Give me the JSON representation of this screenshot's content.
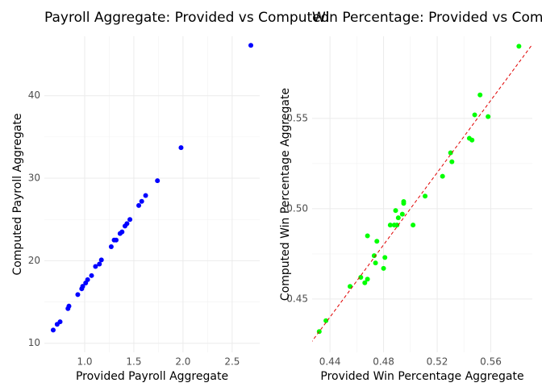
{
  "chart_data": [
    {
      "type": "scatter",
      "title": "Payroll Aggregate: Provided vs Computed",
      "x_label": "Provided Payroll Aggregate",
      "y_label": "Computed Payroll Aggregate",
      "color": "#0000ff",
      "x": [
        0.68,
        0.72,
        0.75,
        0.83,
        0.84,
        0.93,
        0.97,
        0.98,
        1.01,
        1.03,
        1.07,
        1.11,
        1.15,
        1.17,
        1.27,
        1.3,
        1.32,
        1.36,
        1.38,
        1.41,
        1.43,
        1.46,
        1.55,
        1.58,
        1.62,
        1.74,
        1.98,
        2.69
      ],
      "values": [
        11.6,
        12.3,
        12.6,
        14.2,
        14.5,
        15.9,
        16.6,
        16.9,
        17.3,
        17.7,
        18.2,
        19.3,
        19.6,
        20.1,
        21.7,
        22.5,
        22.5,
        23.3,
        23.5,
        24.2,
        24.5,
        25.0,
        26.7,
        27.2,
        27.9,
        29.7,
        33.7,
        46.1
      ],
      "xlim": [
        0.59,
        2.78
      ],
      "ylim": [
        8.9,
        47.2
      ],
      "xticks": [
        {
          "value": 1.0,
          "label": "1.0"
        },
        {
          "value": 1.5,
          "label": "1.5"
        },
        {
          "value": 2.0,
          "label": "2.0"
        },
        2.5
      ],
      "yticks": [
        10,
        20,
        30,
        40
      ],
      "grid": true,
      "reference_line": false
    },
    {
      "type": "scatter",
      "title": "Win Percentage: Provided vs Comp",
      "x_label": "Provided Win Percentage Aggregate",
      "y_label": "Computed Win Percentage Aggregate",
      "color": "#00ff00",
      "x": [
        0.432,
        0.437,
        0.455,
        0.463,
        0.466,
        0.468,
        0.468,
        0.473,
        0.474,
        0.475,
        0.48,
        0.481,
        0.485,
        0.488,
        0.489,
        0.49,
        0.491,
        0.494,
        0.495,
        0.495,
        0.502,
        0.511,
        0.524,
        0.53,
        0.531,
        0.544,
        0.546,
        0.548,
        0.552,
        0.558,
        0.581
      ],
      "values": [
        0.432,
        0.438,
        0.457,
        0.462,
        0.459,
        0.461,
        0.485,
        0.474,
        0.47,
        0.482,
        0.467,
        0.473,
        0.491,
        0.491,
        0.499,
        0.491,
        0.495,
        0.497,
        0.503,
        0.504,
        0.491,
        0.507,
        0.518,
        0.531,
        0.526,
        0.539,
        0.538,
        0.552,
        0.563,
        0.551,
        0.59
      ],
      "xlim": [
        0.4267,
        0.591
      ],
      "ylim": [
        0.4205,
        0.5955
      ],
      "xticks": [
        0.44,
        0.48,
        0.52,
        0.56
      ],
      "yticks": [
        0.45,
        {
          "value": 0.5,
          "label": "0.50"
        },
        0.55
      ],
      "grid": true,
      "reference_line": true
    }
  ]
}
